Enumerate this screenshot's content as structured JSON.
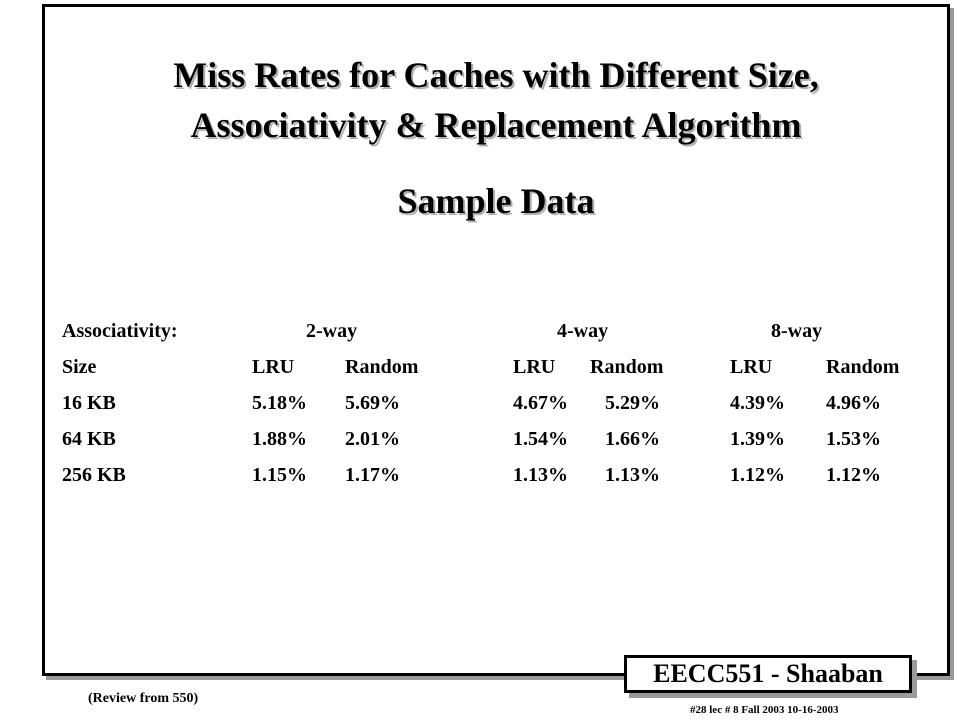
{
  "title_line1": "Miss Rates for Caches with Different Size,",
  "title_line2": "Associativity & Replacement Algorithm",
  "subtitle": "Sample Data",
  "table": {
    "header1": [
      "Associativity:",
      "2-way",
      "4-way",
      "8-way"
    ],
    "header2": [
      "Size",
      "LRU",
      "Random",
      "LRU",
      "Random",
      "LRU",
      "Random"
    ],
    "rows": [
      [
        "16 KB",
        "5.18%",
        "5.69%",
        "4.67%",
        "5.29%",
        "4.39%",
        "4.96%"
      ],
      [
        "64 KB",
        "1.88%",
        "2.01%",
        "1.54%",
        "1.66%",
        "1.39%",
        "1.53%"
      ],
      [
        "256 KB",
        "1.15%",
        "1.17%",
        "1.13%",
        "1.13%",
        "1.12%",
        "1.12%"
      ]
    ]
  },
  "footer": {
    "note": "(Review from 550)",
    "badge": "EECC551 - Shaaban",
    "lecture_info": "#28   lec # 8   Fall 2003  10-16-2003"
  }
}
